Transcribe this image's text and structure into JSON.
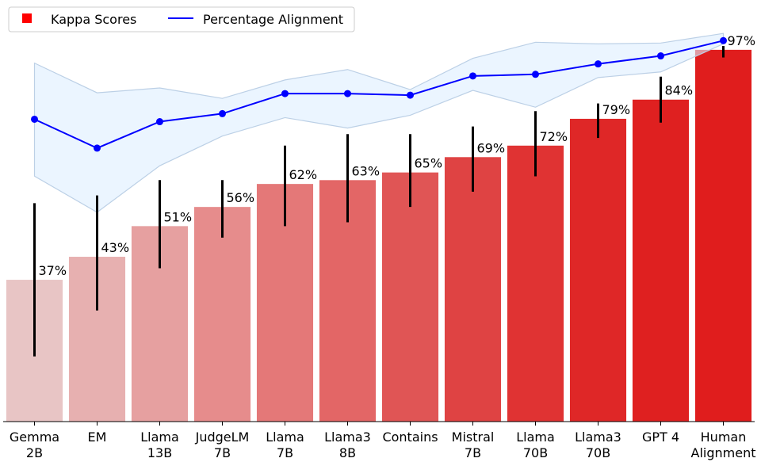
{
  "chart_data": {
    "type": "bar",
    "categories": [
      [
        "Gemma",
        "2B"
      ],
      [
        "EM"
      ],
      [
        "Llama",
        "13B"
      ],
      [
        "JudgeLM",
        "7B"
      ],
      [
        "Llama",
        "7B"
      ],
      [
        "Llama3",
        "8B"
      ],
      [
        "Contains"
      ],
      [
        "Mistral",
        "7B"
      ],
      [
        "Llama",
        "70B"
      ],
      [
        "Llama3",
        "70B"
      ],
      [
        "GPT 4"
      ],
      [
        "Human",
        "Alignment"
      ]
    ],
    "series": [
      {
        "name": "Kappa Scores",
        "kind": "bar",
        "values": [
          37,
          43,
          51,
          56,
          62,
          63,
          65,
          69,
          72,
          79,
          84,
          97
        ],
        "labels": [
          "37%",
          "43%",
          "51%",
          "56%",
          "62%",
          "63%",
          "65%",
          "69%",
          "72%",
          "79%",
          "84%",
          "97%"
        ],
        "error_low": [
          17,
          29,
          40,
          48,
          51,
          52,
          56,
          60,
          64,
          74,
          78,
          95
        ],
        "error_high": [
          57,
          59,
          63,
          63,
          72,
          75,
          75,
          77,
          81,
          83,
          90,
          98
        ],
        "colors": [
          "#e8c5c5",
          "#e7b0b0",
          "#e6a0a0",
          "#e68c8c",
          "#e47878",
          "#e36666",
          "#e05555",
          "#df4343",
          "#e03333",
          "#df2727",
          "#df2020",
          "#e01d1d"
        ]
      },
      {
        "name": "Percentage Alignment",
        "kind": "line",
        "values": [
          81.7,
          78.1,
          81.4,
          82.4,
          84.9,
          84.9,
          84.7,
          87.1,
          87.3,
          88.6,
          89.6,
          91.5
        ],
        "band_low": [
          74.6,
          70.1,
          75.9,
          79.6,
          81.9,
          80.6,
          82.2,
          85.3,
          83.2,
          86.9,
          87.6,
          91.1
        ],
        "band_high": [
          88.7,
          85.0,
          85.6,
          84.3,
          86.6,
          87.9,
          85.4,
          89.3,
          91.3,
          91.1,
          91.2,
          92.4
        ],
        "color": "#0000ff",
        "band_color": "#ddeeff",
        "band_edge": "#bcd0e6"
      }
    ],
    "ylim_bars": [
      0,
      110
    ],
    "ylim_line": [
      44,
      94
    ],
    "legend_position": "top-left",
    "legend_markers": [
      "square",
      "line"
    ],
    "grid": false
  }
}
